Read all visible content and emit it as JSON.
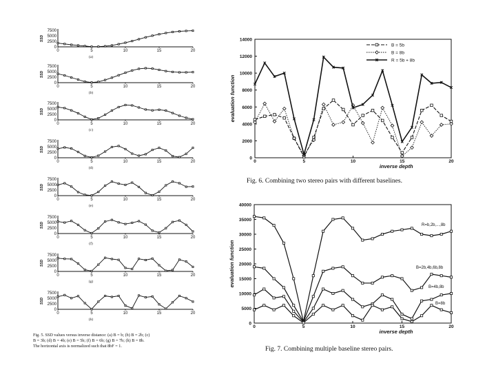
{
  "left_figure": {
    "ylabel": "SSD",
    "yticks": [
      "7500",
      "5000",
      "2500",
      "0"
    ],
    "xticks": [
      "0",
      "5",
      "10",
      "15",
      "20"
    ],
    "caption_lines": [
      "Fig. 5.   SSD values versus inverse distance: (a) B = b; (b) B = 2b; (c)",
      "B = 3b; (d) B = 4b; (e) B = 5b; (f) B = 6b; (g) B = 7b; (h) B = 8b.",
      "The horizontal axis is normalized such that 8bF = 1."
    ]
  },
  "fig6_caption": "Fig. 6.   Combining two stereo pairs with different baselines.",
  "fig7_caption": "Fig. 7.   Combining multiple baseline stereo pairs.",
  "chart_data": [
    {
      "panel": "a",
      "type": "line",
      "title": "(a)",
      "x": [
        0,
        1,
        2,
        3,
        4,
        5,
        6,
        7,
        8,
        9,
        10,
        11,
        12,
        13,
        14,
        15,
        16,
        17,
        18,
        19,
        20
      ],
      "values": [
        1800,
        1400,
        1000,
        700,
        400,
        100,
        100,
        300,
        700,
        1300,
        2000,
        2800,
        3700,
        4600,
        5400,
        6100,
        6700,
        7200,
        7500,
        7700,
        7800
      ],
      "xlabel": "",
      "ylabel": "SSD",
      "xlim": [
        0,
        20
      ],
      "ylim": [
        0,
        8000
      ]
    },
    {
      "panel": "b",
      "type": "line",
      "title": "(b)",
      "x": [
        0,
        1,
        2,
        3,
        4,
        5,
        6,
        7,
        8,
        9,
        10,
        11,
        12,
        13,
        14,
        15,
        16,
        17,
        18,
        19,
        20
      ],
      "values": [
        4300,
        3500,
        2500,
        1500,
        500,
        100,
        400,
        1300,
        2400,
        3600,
        4800,
        5900,
        6700,
        7000,
        6800,
        6200,
        5600,
        5200,
        5000,
        5000,
        5100
      ],
      "xlabel": "",
      "ylabel": "SSD",
      "xlim": [
        0,
        20
      ],
      "ylim": [
        0,
        8000
      ]
    },
    {
      "panel": "c",
      "type": "line",
      "title": "(c)",
      "x": [
        0,
        1,
        2,
        3,
        4,
        5,
        6,
        7,
        8,
        9,
        10,
        11,
        12,
        13,
        14,
        15,
        16,
        17,
        18,
        19,
        20
      ],
      "values": [
        6200,
        5700,
        4600,
        3200,
        1500,
        200,
        800,
        2500,
        4500,
        6200,
        7200,
        7000,
        6000,
        5000,
        4600,
        4900,
        4500,
        3300,
        2000,
        1000,
        300
      ],
      "xlabel": "",
      "ylabel": "SSD",
      "xlim": [
        0,
        20
      ],
      "ylim": [
        0,
        8000
      ]
    },
    {
      "panel": "d",
      "type": "line",
      "title": "(d)",
      "x": [
        0,
        1,
        2,
        3,
        4,
        5,
        6,
        7,
        8,
        9,
        10,
        11,
        12,
        13,
        14,
        15,
        16,
        17,
        18,
        19,
        20
      ],
      "values": [
        4400,
        5000,
        4500,
        2800,
        900,
        200,
        1000,
        3000,
        5200,
        5700,
        4200,
        2000,
        1000,
        1700,
        3800,
        4800,
        3500,
        800,
        300,
        1900,
        4800
      ],
      "xlabel": "",
      "ylabel": "SSD",
      "xlim": [
        0,
        20
      ],
      "ylim": [
        0,
        8000
      ]
    },
    {
      "panel": "e",
      "type": "line",
      "title": "(e)",
      "x": [
        0,
        1,
        2,
        3,
        4,
        5,
        6,
        7,
        8,
        9,
        10,
        11,
        12,
        13,
        14,
        15,
        16,
        17,
        18,
        19,
        20
      ],
      "values": [
        5200,
        6000,
        4400,
        1700,
        400,
        100,
        1800,
        4800,
        6800,
        5800,
        5200,
        6300,
        4200,
        1300,
        200,
        1900,
        5000,
        6800,
        6000,
        4300,
        4400
      ],
      "xlabel": "",
      "ylabel": "SSD",
      "xlim": [
        0,
        20
      ],
      "ylim": [
        0,
        8000
      ]
    },
    {
      "panel": "f",
      "type": "line",
      "title": "(f)",
      "x": [
        0,
        1,
        2,
        3,
        4,
        5,
        6,
        7,
        8,
        9,
        10,
        11,
        12,
        13,
        14,
        15,
        16,
        17,
        18,
        19,
        20
      ],
      "values": [
        5800,
        5300,
        6100,
        4200,
        1600,
        200,
        2500,
        5800,
        6600,
        5400,
        4600,
        5200,
        6000,
        4300,
        1400,
        500,
        2600,
        5600,
        6300,
        4200,
        1000
      ],
      "xlabel": "",
      "ylabel": "SSD",
      "xlim": [
        0,
        20
      ],
      "ylim": [
        0,
        8000
      ]
    },
    {
      "panel": "g",
      "type": "line",
      "title": "(g)",
      "x": [
        0,
        1,
        2,
        3,
        4,
        5,
        6,
        7,
        8,
        9,
        10,
        11,
        12,
        13,
        14,
        15,
        16,
        17,
        18,
        19,
        20
      ],
      "values": [
        6400,
        6100,
        6000,
        3800,
        800,
        200,
        3300,
        6600,
        6000,
        5600,
        1700,
        1200,
        6100,
        5500,
        6200,
        3000,
        300,
        700,
        5700,
        4800,
        2200
      ],
      "xlabel": "",
      "ylabel": "SSD",
      "xlim": [
        0,
        20
      ],
      "ylim": [
        0,
        8000
      ]
    },
    {
      "panel": "h",
      "type": "line",
      "title": "(h)",
      "x": [
        0,
        1,
        2,
        3,
        4,
        5,
        6,
        7,
        8,
        9,
        10,
        11,
        12,
        13,
        14,
        15,
        16,
        17,
        18,
        19,
        20
      ],
      "values": [
        6100,
        6900,
        5400,
        6400,
        3000,
        100,
        3700,
        6500,
        6000,
        6500,
        1800,
        500,
        6700,
        5800,
        6200,
        2400,
        300,
        3400,
        6500,
        5400,
        3700
      ],
      "xlabel": "",
      "ylabel": "SSD",
      "xlim": [
        0,
        20
      ],
      "ylim": [
        0,
        8000
      ]
    },
    {
      "panel": "fig6",
      "type": "line",
      "title": "",
      "xlabel": "inverse depth",
      "ylabel": "evaluation function",
      "xlim": [
        0,
        20
      ],
      "ylim": [
        0,
        14000
      ],
      "xticks": [
        "0",
        "5",
        "10",
        "15",
        "20"
      ],
      "yticks": [
        "0",
        "2000",
        "4000",
        "6000",
        "8000",
        "10000",
        "12000",
        "14000"
      ],
      "x": [
        0,
        1,
        2,
        3,
        4,
        5,
        6,
        7,
        8,
        9,
        10,
        11,
        12,
        13,
        14,
        15,
        16,
        17,
        18,
        19,
        20
      ],
      "series": [
        {
          "name": "B = 5b",
          "marker": "square",
          "values": [
            4500,
            4900,
            5100,
            4700,
            2300,
            100,
            2400,
            5800,
            6800,
            5700,
            3900,
            5000,
            5600,
            4400,
            2400,
            600,
            2400,
            5600,
            6200,
            5000,
            4300
          ]
        },
        {
          "name": "B = 8b",
          "marker": "diamond",
          "values": [
            4200,
            6400,
            4300,
            5800,
            2300,
            300,
            2100,
            6300,
            3900,
            4200,
            6200,
            4100,
            1800,
            5900,
            3800,
            200,
            1200,
            4200,
            2600,
            3900,
            4000
          ]
        },
        {
          "name": "R = 5b + 8b",
          "marker": "star",
          "values": [
            8700,
            11200,
            9600,
            10000,
            4600,
            400,
            4500,
            11900,
            10700,
            10600,
            5900,
            6300,
            7400,
            10300,
            6200,
            1900,
            3600,
            9800,
            8800,
            8900,
            8300
          ]
        }
      ]
    },
    {
      "panel": "fig7",
      "type": "line",
      "title": "",
      "xlabel": "inverse depth",
      "ylabel": "evaluation function",
      "xlim": [
        0,
        20
      ],
      "ylim": [
        0,
        40000
      ],
      "xticks": [
        "0",
        "5",
        "10",
        "15",
        "20"
      ],
      "yticks": [
        "0",
        "5000",
        "10000",
        "15000",
        "20000",
        "25000",
        "30000",
        "35000",
        "40000"
      ],
      "x": [
        0,
        1,
        2,
        3,
        4,
        5,
        6,
        7,
        8,
        9,
        10,
        11,
        12,
        13,
        14,
        15,
        16,
        17,
        18,
        19,
        20
      ],
      "series": [
        {
          "name": "R=b,2b,...,8b",
          "marker": "square",
          "values": [
            36000,
            35500,
            33000,
            27000,
            15000,
            500,
            16000,
            31000,
            35000,
            35500,
            32000,
            28000,
            28500,
            30000,
            31000,
            31500,
            32000,
            30000,
            29500,
            30000,
            31000
          ]
        },
        {
          "name": "B=2b,4b,6b,8b",
          "marker": "square",
          "values": [
            19000,
            18500,
            15000,
            12000,
            6000,
            500,
            9000,
            17500,
            18500,
            19000,
            16000,
            13500,
            13500,
            15500,
            16000,
            15000,
            11000,
            12000,
            16500,
            16000,
            15500
          ]
        },
        {
          "name": "B=4b,8b",
          "marker": "square",
          "values": [
            9500,
            11500,
            8500,
            9000,
            4000,
            300,
            5000,
            11500,
            10000,
            11000,
            8000,
            5500,
            6500,
            9500,
            8000,
            3000,
            1500,
            7500,
            8000,
            9500,
            10000
          ]
        },
        {
          "name": "B=8b",
          "marker": "square",
          "values": [
            4500,
            6000,
            4500,
            6000,
            2500,
            100,
            3000,
            6000,
            4500,
            6000,
            2500,
            1000,
            6000,
            4500,
            5500,
            1500,
            500,
            2500,
            6000,
            4500,
            3500
          ]
        }
      ]
    }
  ]
}
